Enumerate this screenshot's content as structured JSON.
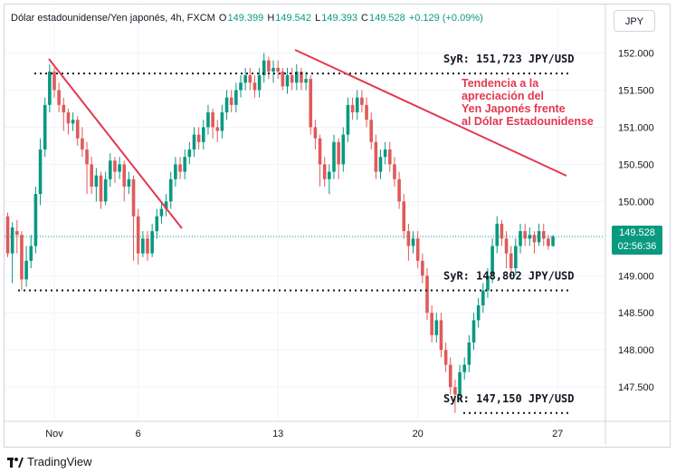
{
  "header": {
    "symbol": "Dólar estadounidense/Yen japonés, 4h, FXCM",
    "open_label": "O",
    "open": "149.399",
    "high_label": "H",
    "high": "149.542",
    "low_label": "L",
    "low": "149.393",
    "close_label": "C",
    "close": "149.528",
    "change": "+0.129 (+0.09%)"
  },
  "unit_button": "JPY",
  "last_price": {
    "price": "149.528",
    "countdown": "02:56:36"
  },
  "brand": "TradingView",
  "colors": {
    "up": "#089981",
    "down": "#e05a5a",
    "annotation": "#e2384f",
    "grid": "#f0f3fa",
    "axis_text": "#131722"
  },
  "chart_data": {
    "type": "candlestick",
    "y_axis": {
      "min": 147.05,
      "max": 152.25,
      "ticks": [
        "152.000",
        "151.500",
        "151.000",
        "150.500",
        "150.000",
        "149.500",
        "149.000",
        "148.500",
        "148.000",
        "147.500"
      ]
    },
    "x_axis": {
      "ticks": [
        {
          "label": "Nov",
          "index": 10
        },
        {
          "label": "6",
          "index": 28
        },
        {
          "label": "13",
          "index": 58
        },
        {
          "label": "20",
          "index": 88
        },
        {
          "label": "27",
          "index": 118
        }
      ]
    },
    "grid": true,
    "last_value": 149.528,
    "candles": [
      [
        149.8,
        149.3,
        149.85,
        149.25
      ],
      [
        149.3,
        149.65,
        149.72,
        148.9
      ],
      [
        149.6,
        149.55,
        149.75,
        149.3
      ],
      [
        149.55,
        148.95,
        149.6,
        148.8
      ],
      [
        148.95,
        149.2,
        149.4,
        148.85
      ],
      [
        149.2,
        149.4,
        149.55,
        149.1
      ],
      [
        149.4,
        150.1,
        150.2,
        149.3
      ],
      [
        150.1,
        150.7,
        150.85,
        149.95
      ],
      [
        150.7,
        151.3,
        151.4,
        150.6
      ],
      [
        151.3,
        151.75,
        151.85,
        151.2
      ],
      [
        151.75,
        151.5,
        151.8,
        151.4
      ],
      [
        151.5,
        151.3,
        151.6,
        151.2
      ],
      [
        151.3,
        151.2,
        151.4,
        150.95
      ],
      [
        151.2,
        151.05,
        151.25,
        150.9
      ],
      [
        151.05,
        151.1,
        151.2,
        150.95
      ],
      [
        151.1,
        150.85,
        151.15,
        150.75
      ],
      [
        150.85,
        150.7,
        151.0,
        150.6
      ],
      [
        150.7,
        150.5,
        150.8,
        150.1
      ],
      [
        150.5,
        150.2,
        150.6,
        150.1
      ],
      [
        150.2,
        150.35,
        150.45,
        150.0
      ],
      [
        150.35,
        150.0,
        150.4,
        149.9
      ],
      [
        150.0,
        150.3,
        150.4,
        149.95
      ],
      [
        150.3,
        150.55,
        150.65,
        150.2
      ],
      [
        150.55,
        150.4,
        150.6,
        150.25
      ],
      [
        150.4,
        150.5,
        150.6,
        150.3
      ],
      [
        150.5,
        150.2,
        150.55,
        150.0
      ],
      [
        150.2,
        150.3,
        150.4,
        150.1
      ],
      [
        150.3,
        149.8,
        150.35,
        149.2
      ],
      [
        149.8,
        149.3,
        149.9,
        149.15
      ],
      [
        149.3,
        149.5,
        149.6,
        149.25
      ],
      [
        149.5,
        149.3,
        149.6,
        149.2
      ],
      [
        149.3,
        149.6,
        149.7,
        149.25
      ],
      [
        149.6,
        149.8,
        149.9,
        149.5
      ],
      [
        149.8,
        149.9,
        150.0,
        149.7
      ],
      [
        149.9,
        150.0,
        150.1,
        149.8
      ],
      [
        150.0,
        150.3,
        150.4,
        149.9
      ],
      [
        150.3,
        150.5,
        150.6,
        150.2
      ],
      [
        150.5,
        150.4,
        150.6,
        150.3
      ],
      [
        150.4,
        150.6,
        150.7,
        150.3
      ],
      [
        150.6,
        150.7,
        150.8,
        150.5
      ],
      [
        150.7,
        150.9,
        151.0,
        150.6
      ],
      [
        150.9,
        150.8,
        151.0,
        150.7
      ],
      [
        150.8,
        151.0,
        151.1,
        150.7
      ],
      [
        151.0,
        151.2,
        151.3,
        150.9
      ],
      [
        151.2,
        151.0,
        151.25,
        150.85
      ],
      [
        151.0,
        150.95,
        151.1,
        150.8
      ],
      [
        150.95,
        151.2,
        151.3,
        150.85
      ],
      [
        151.2,
        151.4,
        151.5,
        151.1
      ],
      [
        151.4,
        151.3,
        151.5,
        151.2
      ],
      [
        151.3,
        151.5,
        151.6,
        151.2
      ],
      [
        151.5,
        151.6,
        151.7,
        151.4
      ],
      [
        151.6,
        151.7,
        151.8,
        151.5
      ],
      [
        151.7,
        151.6,
        151.8,
        151.5
      ],
      [
        151.6,
        151.5,
        151.7,
        151.4
      ],
      [
        151.5,
        151.7,
        151.8,
        151.4
      ],
      [
        151.7,
        151.9,
        152.0,
        151.6
      ],
      [
        151.9,
        151.75,
        151.95,
        151.65
      ],
      [
        151.75,
        151.8,
        151.9,
        151.6
      ],
      [
        151.8,
        151.75,
        151.9,
        151.65
      ],
      [
        151.75,
        151.55,
        151.8,
        151.5
      ],
      [
        151.55,
        151.7,
        151.8,
        151.45
      ],
      [
        151.7,
        151.6,
        151.8,
        151.5
      ],
      [
        151.6,
        151.75,
        151.85,
        151.5
      ],
      [
        151.75,
        151.6,
        151.8,
        151.5
      ],
      [
        151.6,
        151.65,
        151.75,
        151.5
      ],
      [
        151.65,
        151.0,
        151.7,
        150.9
      ],
      [
        151.0,
        150.85,
        151.1,
        150.7
      ],
      [
        150.85,
        150.5,
        150.9,
        150.2
      ],
      [
        150.5,
        150.3,
        150.6,
        150.2
      ],
      [
        150.3,
        150.4,
        150.5,
        150.1
      ],
      [
        150.4,
        150.8,
        150.9,
        150.3
      ],
      [
        150.8,
        150.5,
        150.85,
        150.3
      ],
      [
        150.5,
        150.9,
        151.0,
        150.4
      ],
      [
        150.9,
        151.3,
        151.4,
        150.8
      ],
      [
        151.3,
        151.2,
        151.4,
        151.1
      ],
      [
        151.2,
        151.4,
        151.5,
        151.1
      ],
      [
        151.4,
        151.3,
        151.5,
        151.2
      ],
      [
        151.3,
        151.1,
        151.4,
        151.0
      ],
      [
        151.1,
        150.8,
        151.2,
        150.7
      ],
      [
        150.8,
        150.4,
        150.9,
        150.3
      ],
      [
        150.4,
        150.6,
        150.7,
        150.3
      ],
      [
        150.6,
        150.7,
        150.8,
        150.5
      ],
      [
        150.7,
        150.5,
        150.8,
        150.4
      ],
      [
        150.5,
        150.3,
        150.6,
        150.2
      ],
      [
        150.3,
        150.0,
        150.4,
        149.9
      ],
      [
        150.0,
        149.6,
        150.1,
        149.5
      ],
      [
        149.6,
        149.4,
        149.7,
        149.2
      ],
      [
        149.4,
        149.5,
        149.6,
        149.3
      ],
      [
        149.5,
        149.2,
        149.6,
        149.1
      ],
      [
        149.2,
        149.0,
        149.3,
        148.9
      ],
      [
        149.0,
        148.5,
        149.1,
        148.4
      ],
      [
        148.5,
        148.2,
        148.6,
        148.1
      ],
      [
        148.2,
        148.4,
        148.5,
        148.1
      ],
      [
        148.4,
        148.0,
        148.5,
        147.9
      ],
      [
        148.0,
        147.8,
        148.1,
        147.7
      ],
      [
        147.8,
        147.5,
        147.9,
        147.4
      ],
      [
        147.5,
        147.4,
        147.6,
        147.15
      ],
      [
        147.4,
        147.7,
        147.8,
        147.3
      ],
      [
        147.7,
        147.8,
        147.9,
        147.6
      ],
      [
        147.8,
        148.1,
        148.2,
        147.7
      ],
      [
        148.1,
        148.4,
        148.5,
        148.0
      ],
      [
        148.4,
        148.6,
        148.7,
        148.3
      ],
      [
        148.6,
        148.8,
        148.9,
        148.5
      ],
      [
        148.8,
        149.0,
        149.1,
        148.7
      ],
      [
        149.0,
        149.4,
        149.5,
        148.9
      ],
      [
        149.4,
        149.7,
        149.8,
        149.3
      ],
      [
        149.7,
        149.5,
        149.75,
        149.4
      ],
      [
        149.5,
        149.3,
        149.6,
        149.1
      ],
      [
        149.3,
        149.1,
        149.4,
        149.0
      ],
      [
        149.1,
        149.4,
        149.5,
        149.0
      ],
      [
        149.4,
        149.6,
        149.7,
        149.3
      ],
      [
        149.6,
        149.5,
        149.7,
        149.4
      ],
      [
        149.5,
        149.55,
        149.65,
        149.4
      ],
      [
        149.55,
        149.45,
        149.6,
        149.3
      ],
      [
        149.45,
        149.6,
        149.7,
        149.4
      ],
      [
        149.6,
        149.5,
        149.7,
        149.4
      ],
      [
        149.5,
        149.4,
        149.55,
        149.35
      ],
      [
        149.4,
        149.53,
        149.55,
        149.39
      ]
    ],
    "lines": {
      "resistance": {
        "label": "SyR: 151,723 JPY/USD",
        "value": 151.723
      },
      "support_mid": {
        "label": "SyR: 148,802 JPY/USD",
        "value": 148.802
      },
      "support_low": {
        "label": "SyR: 147,150 JPY/USD",
        "value": 147.15
      }
    },
    "annotation": {
      "lines": [
        "Tendencia a la",
        "apreciación del",
        "Yen Japonés frente",
        "al Dólar Estadounidense"
      ]
    }
  }
}
